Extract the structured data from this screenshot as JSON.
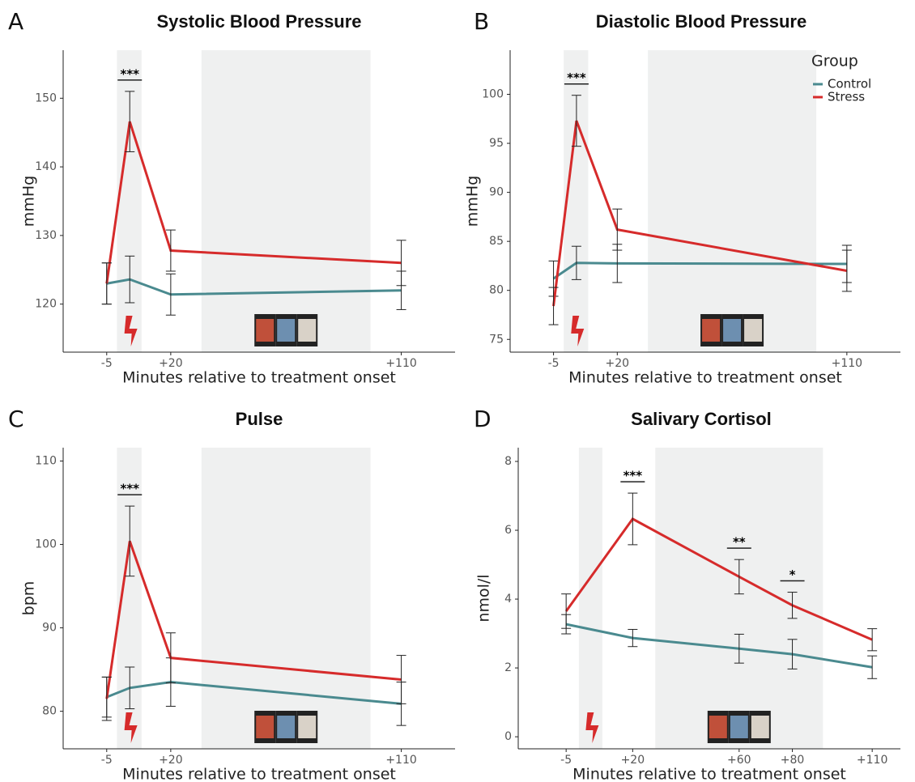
{
  "chart_data": [
    {
      "type": "line",
      "panel": "A",
      "title": "Systolic Blood Pressure",
      "xlabel": "Minutes relative to treatment onset",
      "ylabel": "mmHg",
      "x": [
        -5,
        4,
        20,
        110
      ],
      "series": [
        {
          "color": "#4a8a8f",
          "values": [
            123,
            123.6,
            121.4,
            122
          ],
          "errors": [
            3,
            3.4,
            3,
            2.8
          ]
        },
        {
          "color": "#d62b2b",
          "values": [
            123,
            146.6,
            127.8,
            126
          ],
          "errors": [
            3,
            4.4,
            3,
            3.3
          ]
        }
      ],
      "xlim": [
        -22,
        131
      ],
      "ylim": [
        113,
        157
      ],
      "xticks": [
        -5,
        {
          "value": 20,
          "label": "+20"
        },
        {
          "value": 110,
          "label": "+110"
        }
      ],
      "yticks": [
        120,
        130,
        140,
        150
      ],
      "shaded": [
        [
          -1,
          8.6
        ],
        [
          32,
          98
        ]
      ],
      "annotations": [
        {
          "text": "***",
          "x": 4
        }
      ]
    },
    {
      "type": "line",
      "panel": "B",
      "title": "Diastolic Blood Pressure",
      "xlabel": "Minutes relative to treatment onset",
      "ylabel": "mmHg",
      "x": [
        -5,
        4,
        20,
        110
      ],
      "series": [
        {
          "name": "Control",
          "color": "#4a8a8f",
          "values": [
            81.2,
            82.8,
            82.75,
            82.7
          ],
          "errors": [
            1.8,
            1.7,
            1.95,
            1.9
          ]
        },
        {
          "name": "Stress",
          "color": "#d62b2b",
          "values": [
            78.4,
            97.3,
            86.2,
            82
          ],
          "errors": [
            1.9,
            2.6,
            2.1,
            2.1
          ]
        }
      ],
      "xlim": [
        -22,
        131
      ],
      "ylim": [
        73.7,
        104.5
      ],
      "xticks": [
        -5,
        {
          "value": 20,
          "label": "+20"
        },
        {
          "value": 110,
          "label": "+110"
        }
      ],
      "yticks": [
        75,
        80,
        85,
        90,
        95,
        100
      ],
      "shaded": [
        [
          -1,
          8.6
        ],
        [
          32,
          98
        ]
      ],
      "annotations": [
        {
          "text": "***",
          "x": 4
        }
      ],
      "legend": {
        "title": "Group",
        "position": "upper right"
      }
    },
    {
      "type": "line",
      "panel": "C",
      "title": "Pulse",
      "xlabel": "Minutes relative to treatment onset",
      "ylabel": "bpm",
      "x": [
        -5,
        4,
        20,
        110
      ],
      "series": [
        {
          "color": "#4a8a8f",
          "values": [
            81.7,
            82.8,
            83.5,
            80.9
          ],
          "errors": [
            2.4,
            2.5,
            2.9,
            2.6
          ]
        },
        {
          "color": "#d62b2b",
          "values": [
            81.5,
            100.4,
            86.4,
            83.8
          ],
          "errors": [
            2.6,
            4.2,
            3,
            2.9
          ]
        }
      ],
      "xlim": [
        -22,
        131
      ],
      "ylim": [
        75.5,
        111.6
      ],
      "xticks": [
        -5,
        {
          "value": 20,
          "label": "+20"
        },
        {
          "value": 110,
          "label": "+110"
        }
      ],
      "yticks": [
        80,
        90,
        100,
        110
      ],
      "shaded": [
        [
          -1,
          8.6
        ],
        [
          32,
          98
        ]
      ],
      "annotations": [
        {
          "text": "***",
          "x": 4
        }
      ]
    },
    {
      "type": "line",
      "panel": "D",
      "title": "Salivary Cortisol",
      "xlabel": "Minutes relative to treatment onset",
      "ylabel": "nmol/l",
      "x": [
        -5,
        20,
        60,
        80,
        110
      ],
      "series": [
        {
          "color": "#4a8a8f",
          "values": [
            3.27,
            2.87,
            2.56,
            2.4,
            2.02
          ],
          "errors": [
            0.28,
            0.25,
            0.42,
            0.43,
            0.33
          ]
        },
        {
          "color": "#d62b2b",
          "values": [
            3.65,
            6.33,
            4.65,
            3.82,
            2.82
          ],
          "errors": [
            0.5,
            0.75,
            0.5,
            0.38,
            0.32
          ]
        }
      ],
      "xlim": [
        -23,
        120.6
      ],
      "ylim": [
        -0.35,
        8.4
      ],
      "xticks": [
        -5,
        {
          "value": 20,
          "label": "+20"
        },
        {
          "value": 60,
          "label": "+60"
        },
        {
          "value": 80,
          "label": "+80"
        },
        {
          "value": 110,
          "label": "+110"
        }
      ],
      "yticks": [
        0,
        2,
        4,
        6,
        8
      ],
      "shaded": [
        [
          -0.2,
          8.6
        ],
        [
          28.5,
          91.5
        ]
      ],
      "annotations": [
        {
          "text": "***",
          "x": 20
        },
        {
          "text": "**",
          "x": 60
        },
        {
          "text": "*",
          "x": 80
        }
      ]
    }
  ]
}
